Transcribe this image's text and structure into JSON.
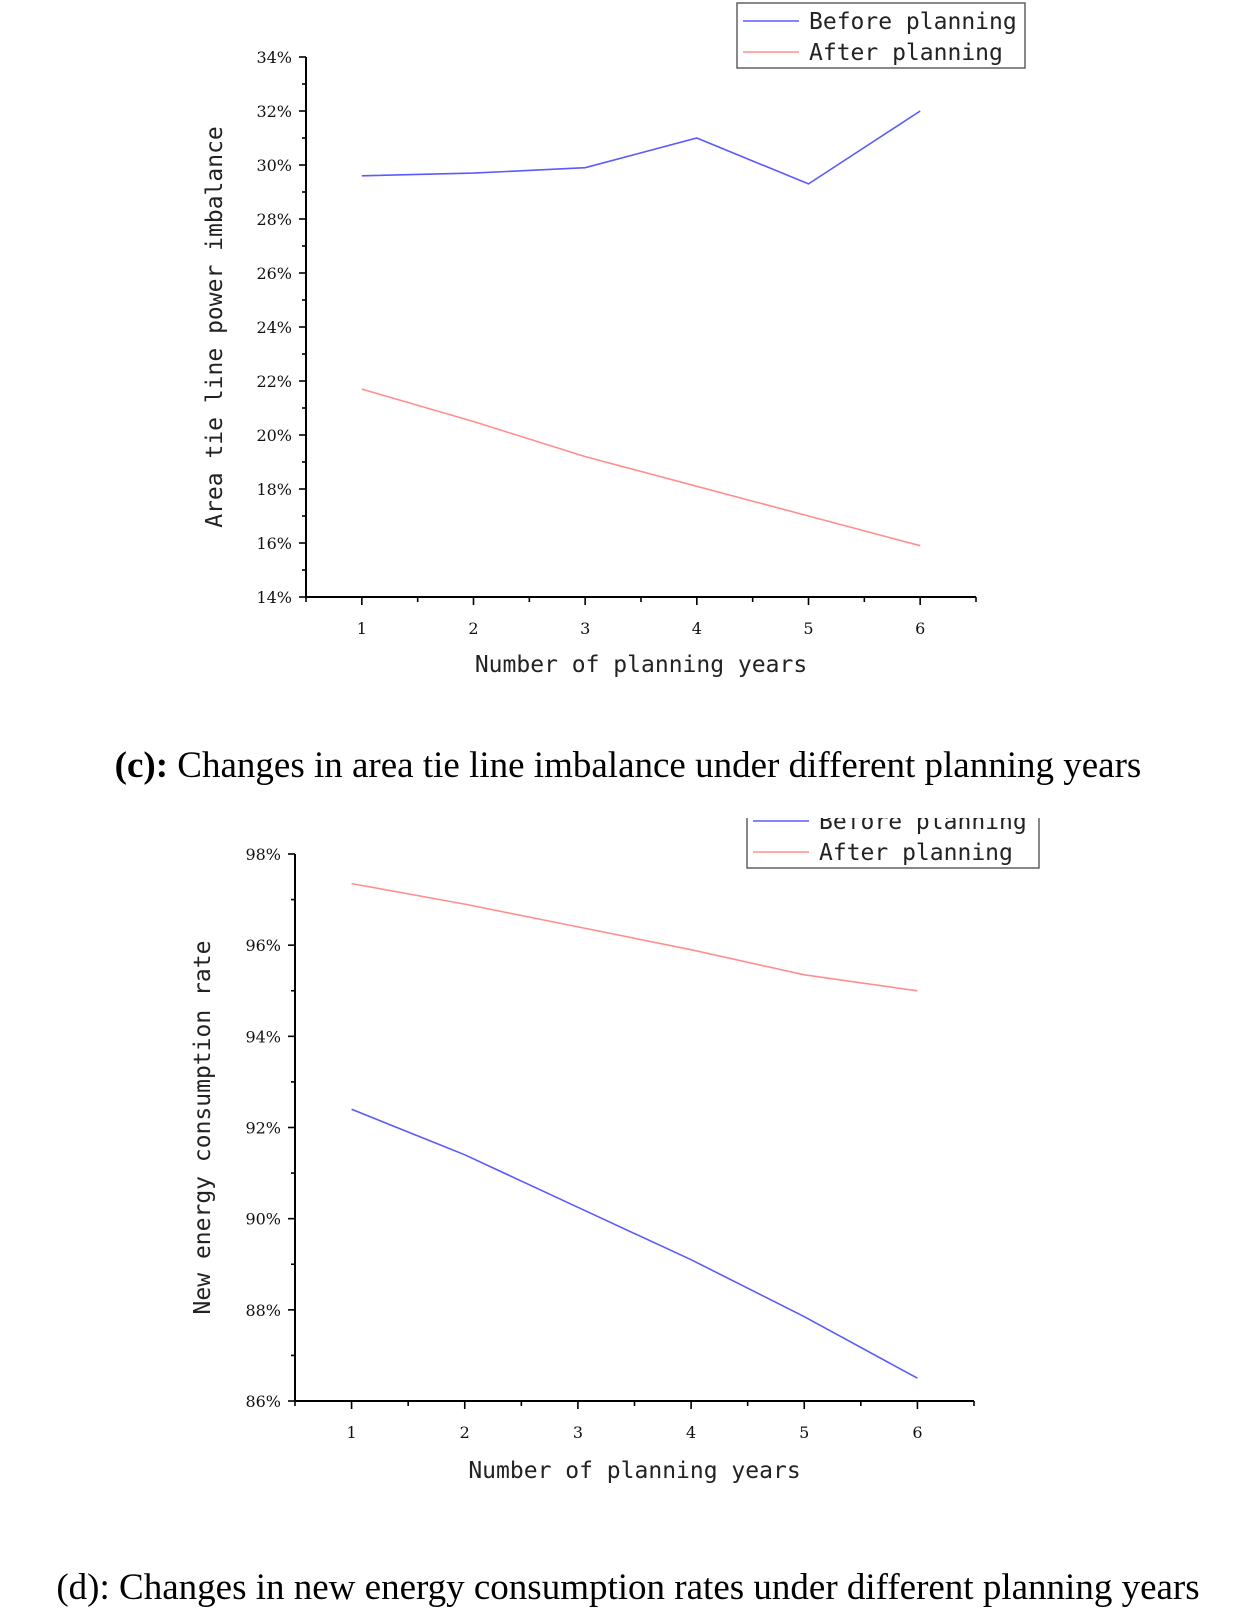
{
  "colors": {
    "before": "#5a5aff",
    "after": "#ff8f8f"
  },
  "figures": [
    {
      "caption_prefix": "(c):",
      "caption_prefix_bold": true,
      "caption_text": " Changes in area tie line imbalance under different planning years"
    },
    {
      "caption_prefix": "(d):",
      "caption_prefix_bold": false,
      "caption_text": " Changes in new energy consumption rates under different planning years"
    }
  ],
  "chart_data": [
    {
      "type": "line",
      "xlabel": "Number of planning years",
      "ylabel": "Area tie line power imbalance",
      "x": [
        1,
        2,
        3,
        4,
        5,
        6
      ],
      "xlim": [
        0.5,
        6.5
      ],
      "ylim": [
        14,
        34
      ],
      "yticks": [
        "14%",
        "16%",
        "18%",
        "20%",
        "22%",
        "24%",
        "26%",
        "28%",
        "30%",
        "32%",
        "34%"
      ],
      "xticks": [
        "1",
        "2",
        "3",
        "4",
        "5",
        "6"
      ],
      "legend_position": "top-right",
      "series": [
        {
          "name": "Before planning",
          "values": [
            29.6,
            29.7,
            29.9,
            31.0,
            29.3,
            32.0
          ]
        },
        {
          "name": "After planning",
          "values": [
            21.7,
            20.5,
            19.2,
            18.1,
            17.0,
            15.9
          ]
        }
      ]
    },
    {
      "type": "line",
      "xlabel": "Number of planning years",
      "ylabel": "New energy consumption rate",
      "x": [
        1,
        2,
        3,
        4,
        5,
        6
      ],
      "xlim": [
        0.5,
        6.5
      ],
      "ylim": [
        86,
        98
      ],
      "yticks": [
        "86%",
        "88%",
        "90%",
        "92%",
        "94%",
        "96%",
        "98%"
      ],
      "xticks": [
        "1",
        "2",
        "3",
        "4",
        "5",
        "6"
      ],
      "legend_position": "top-right",
      "series": [
        {
          "name": "Before planning",
          "values": [
            92.4,
            91.4,
            90.25,
            89.1,
            87.85,
            86.5
          ]
        },
        {
          "name": "After planning",
          "values": [
            97.35,
            96.9,
            96.4,
            95.9,
            95.35,
            95.0
          ]
        }
      ]
    }
  ]
}
